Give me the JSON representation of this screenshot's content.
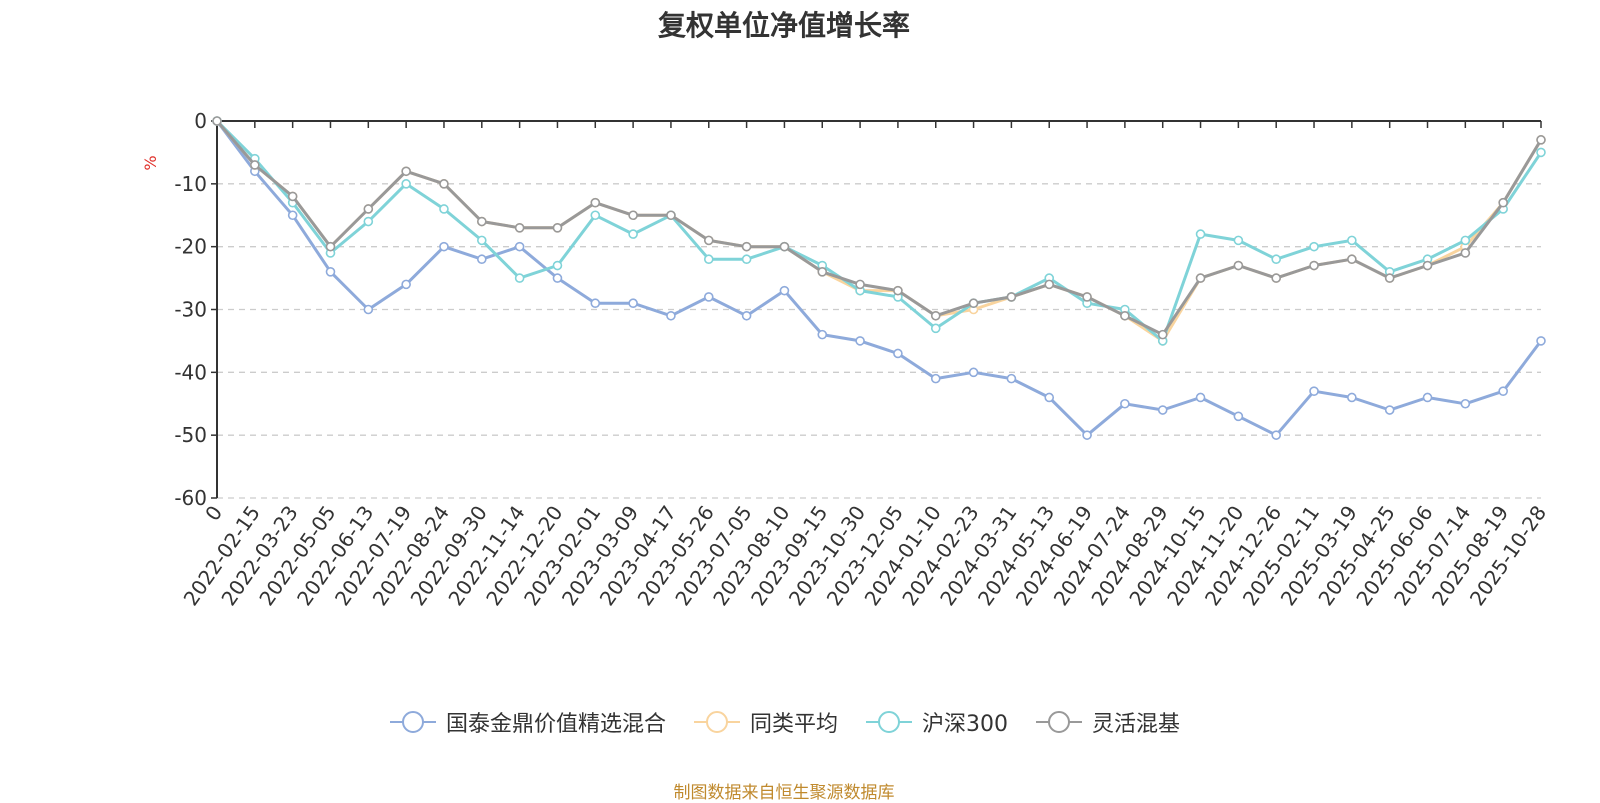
{
  "chart_data": {
    "type": "line",
    "title": "复权单位净值增长率",
    "ylabel": "%",
    "ylim": [
      -60,
      0
    ],
    "yticks": [
      0,
      -10,
      -20,
      -30,
      -40,
      -50,
      -60
    ],
    "x_ticks": [
      "0",
      "2022-02-15",
      "2022-03-23",
      "2022-05-05",
      "2022-06-13",
      "2022-07-19",
      "2022-08-24",
      "2022-09-30",
      "2022-11-14",
      "2022-12-20",
      "2023-02-01",
      "2023-03-09",
      "2023-04-17",
      "2023-05-26",
      "2023-07-05",
      "2023-08-10",
      "2023-09-15",
      "2023-10-30",
      "2023-12-05",
      "2024-01-10",
      "2024-02-23",
      "2024-03-31",
      "2024-05-13",
      "2024-06-19",
      "2024-07-24",
      "2024-08-29",
      "2024-10-15",
      "2024-11-20",
      "2024-12-26",
      "2025-02-11",
      "2025-03-19",
      "2025-04-25",
      "2025-06-06",
      "2025-07-14",
      "2025-08-19",
      "2025-10-28"
    ],
    "grid": true,
    "legend_position": "bottom",
    "series": [
      {
        "name": "国泰金鼎价值精选混合",
        "color": "#8eaadb",
        "values": [
          0,
          -8,
          -15,
          -24,
          -30,
          -26,
          -20,
          -22,
          -20,
          -25,
          -29,
          -29,
          -31,
          -28,
          -31,
          -27,
          -34,
          -35,
          -37,
          -41,
          -40,
          -41,
          -44,
          -50,
          -45,
          -46,
          -44,
          -47,
          -50,
          -43,
          -44,
          -46,
          -44,
          -45,
          -43,
          -35
        ]
      },
      {
        "name": "同类平均",
        "color": "#f9d49e",
        "values": [
          0,
          -7,
          -12,
          -20,
          -14,
          -8,
          -10,
          -16,
          -17,
          -17,
          -13,
          -15,
          -15,
          -19,
          -20,
          -20,
          -24,
          -27,
          -27,
          -31,
          -30,
          -28,
          -26,
          -28,
          -31,
          -35,
          -25,
          -23,
          -25,
          -23,
          -22,
          -25,
          -23,
          -20,
          -13,
          -3
        ]
      },
      {
        "name": "沪深300",
        "color": "#7fd3d8",
        "values": [
          0,
          -6,
          -13,
          -21,
          -16,
          -10,
          -14,
          -19,
          -25,
          -23,
          -15,
          -18,
          -15,
          -22,
          -22,
          -20,
          -23,
          -27,
          -28,
          -33,
          -29,
          -28,
          -25,
          -29,
          -30,
          -35,
          -18,
          -19,
          -22,
          -20,
          -19,
          -24,
          -22,
          -19,
          -14,
          -5
        ]
      },
      {
        "name": "灵活混基",
        "color": "#999999",
        "values": [
          0,
          -7,
          -12,
          -20,
          -14,
          -8,
          -10,
          -16,
          -17,
          -17,
          -13,
          -15,
          -15,
          -19,
          -20,
          -20,
          -24,
          -26,
          -27,
          -31,
          -29,
          -28,
          -26,
          -28,
          -31,
          -34,
          -25,
          -23,
          -25,
          -23,
          -22,
          -25,
          -23,
          -21,
          -13,
          -3
        ]
      }
    ]
  },
  "footer": "制图数据来自恒生聚源数据库"
}
